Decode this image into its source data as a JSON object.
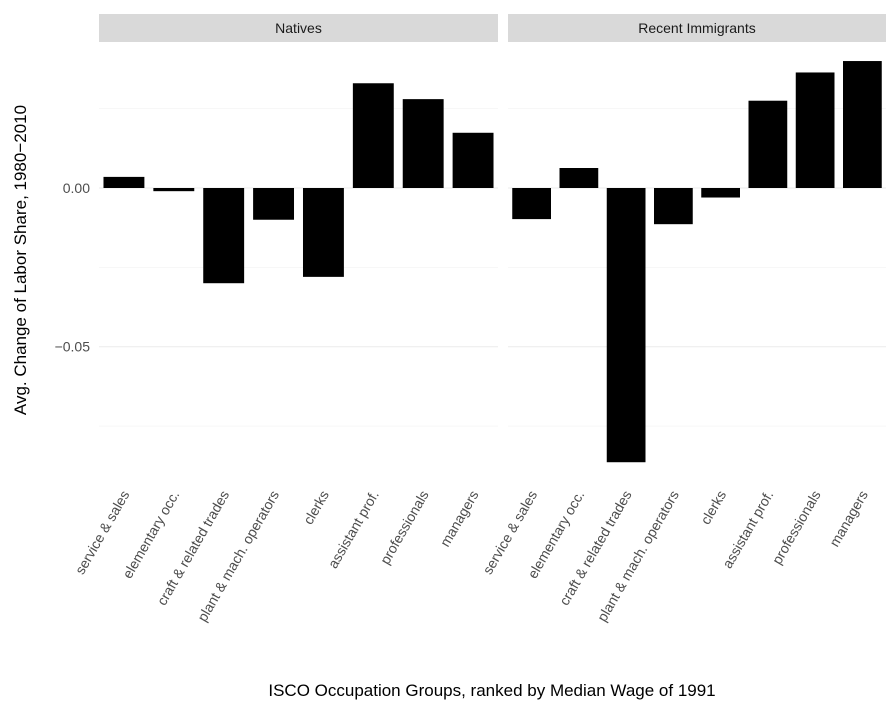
{
  "chart_data": {
    "type": "bar",
    "xlabel": "ISCO Occupation Groups, ranked by Median Wage of 1991",
    "ylabel": "Avg. Change of Labor Share, 1980−2010",
    "categories": [
      "service & sales",
      "elementary occ.",
      "craft & related trades",
      "plant & mach. operators",
      "clerks",
      "assistant prof.",
      "professionals",
      "managers"
    ],
    "color": "#000000",
    "ylim": [
      -0.092,
      0.046
    ],
    "yticks": [
      {
        "value": -0.05,
        "label": "−0.05"
      },
      {
        "value": 0,
        "label": "0.00"
      }
    ],
    "minor_yticks": [
      -0.075,
      -0.025,
      0.025
    ],
    "grid": true,
    "facets": [
      {
        "title": "Natives",
        "values": [
          0.0035,
          -0.001,
          -0.03,
          -0.01,
          -0.028,
          0.033,
          0.028,
          0.0174
        ]
      },
      {
        "title": "Recent Immigrants",
        "values": [
          -0.0098,
          0.0063,
          -0.0864,
          -0.0114,
          -0.003,
          0.0275,
          0.0364,
          0.04
        ]
      }
    ]
  }
}
